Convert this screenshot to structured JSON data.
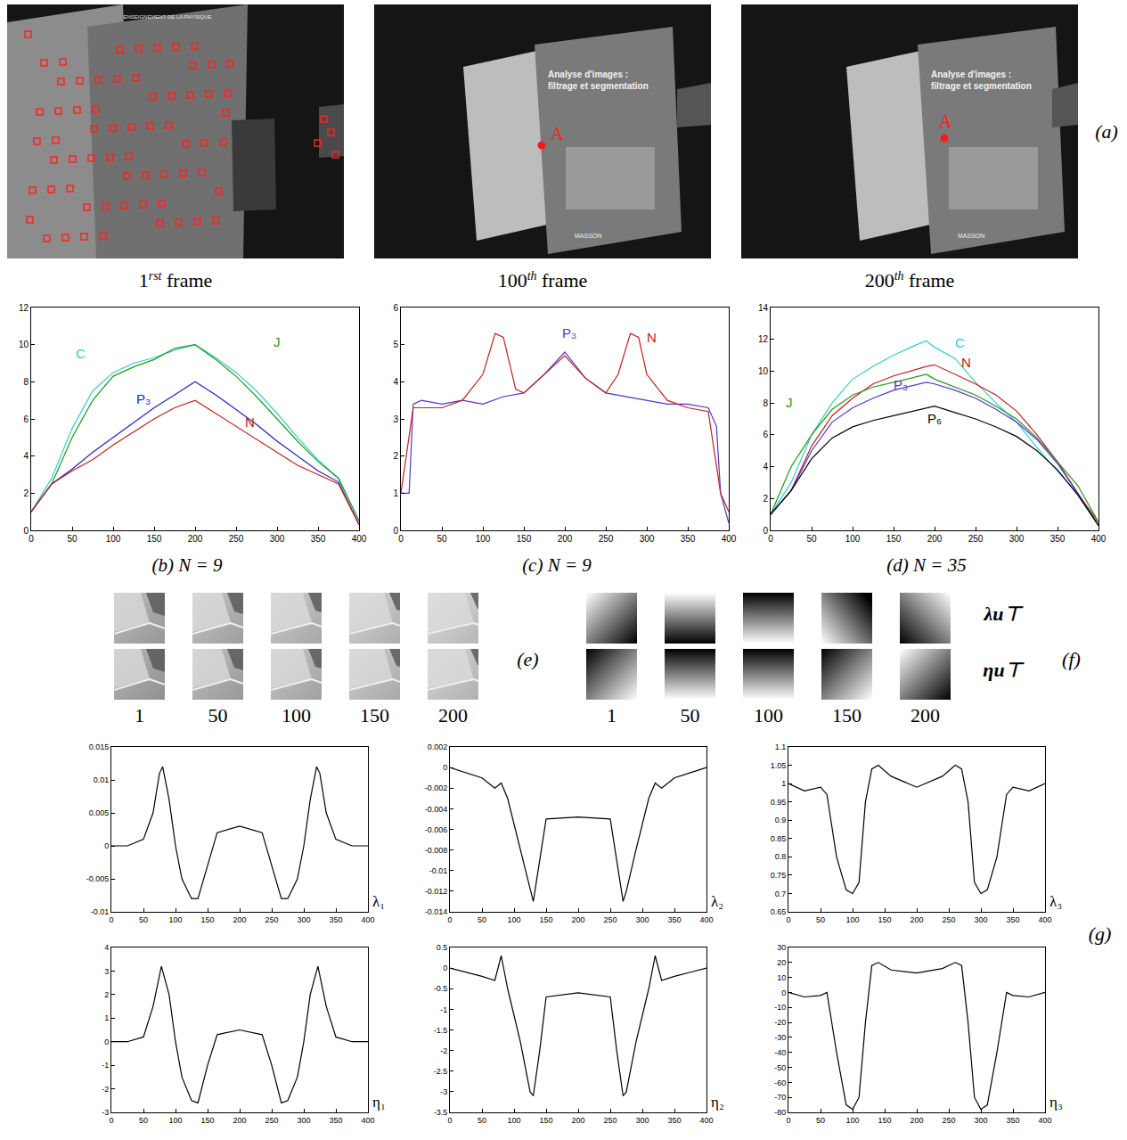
{
  "photos": {
    "panel_label": "(a)",
    "frames": [
      {
        "number": "1",
        "suffix": "rst",
        "word": "frame"
      },
      {
        "number": "100",
        "suffix": "th",
        "word": "frame"
      },
      {
        "number": "200",
        "suffix": "th",
        "word": "frame"
      }
    ],
    "point_label": "A",
    "collection": "ENSEIGNEMENT DE LA PHYSIQUE",
    "cover_title": [
      "Analyse d'images :",
      "filtrage et segmentation"
    ],
    "publisher": "MASSON"
  },
  "chart_data": [
    {
      "type": "line",
      "title": "(b) N = 9",
      "xlim": [
        0,
        400
      ],
      "xticks": [
        0,
        50,
        100,
        150,
        200,
        250,
        300,
        350,
        400
      ],
      "ylim": [
        0,
        12
      ],
      "yticks": [
        0,
        2,
        4,
        6,
        8,
        10,
        12
      ],
      "grid": false,
      "series": [
        {
          "name": "C",
          "color": "#33cccc",
          "x": [
            0,
            25,
            50,
            75,
            100,
            125,
            150,
            175,
            200,
            225,
            250,
            275,
            300,
            325,
            350,
            375,
            400
          ],
          "values": [
            1,
            2.8,
            5.5,
            7.5,
            8.5,
            9,
            9.3,
            9.7,
            10,
            9.3,
            8.5,
            7.5,
            6.3,
            5,
            3.8,
            2.8,
            0.5
          ]
        },
        {
          "name": "J",
          "color": "#1f9a1f",
          "x": [
            0,
            25,
            50,
            75,
            100,
            125,
            150,
            175,
            200,
            225,
            250,
            275,
            300,
            325,
            350,
            375,
            400
          ],
          "values": [
            1,
            2.5,
            5,
            7,
            8.3,
            8.8,
            9.2,
            9.8,
            10,
            9.2,
            8.3,
            7.2,
            6,
            4.8,
            3.7,
            2.8,
            0.5
          ]
        },
        {
          "name": "P₃",
          "color": "#2222c0",
          "x": [
            0,
            25,
            50,
            75,
            100,
            125,
            150,
            175,
            200,
            225,
            250,
            275,
            300,
            325,
            350,
            375,
            400
          ],
          "values": [
            1,
            2.5,
            3.3,
            4.2,
            5,
            5.8,
            6.6,
            7.3,
            8,
            7.3,
            6.5,
            5.7,
            4.8,
            4,
            3.2,
            2.6,
            0.3
          ]
        },
        {
          "name": "N",
          "color": "#c02020",
          "x": [
            0,
            25,
            50,
            75,
            100,
            125,
            150,
            175,
            200,
            225,
            250,
            275,
            300,
            325,
            350,
            375,
            400
          ],
          "values": [
            1,
            2.5,
            3.2,
            3.8,
            4.6,
            5.3,
            6,
            6.6,
            7,
            6.3,
            5.6,
            4.9,
            4.2,
            3.5,
            3,
            2.5,
            0.3
          ]
        }
      ]
    },
    {
      "type": "line",
      "title": "(c) N = 9",
      "xlim": [
        0,
        400
      ],
      "xticks": [
        0,
        50,
        100,
        150,
        200,
        250,
        300,
        350,
        400
      ],
      "ylim": [
        0,
        6
      ],
      "yticks": [
        0,
        1,
        2,
        3,
        4,
        5,
        6
      ],
      "grid": false,
      "series": [
        {
          "name": "P₃",
          "color": "#5533cc",
          "x": [
            0,
            10,
            15,
            25,
            50,
            75,
            100,
            125,
            150,
            175,
            200,
            225,
            250,
            275,
            300,
            325,
            350,
            375,
            385,
            390,
            400
          ],
          "values": [
            1,
            1,
            3.4,
            3.5,
            3.4,
            3.5,
            3.4,
            3.6,
            3.7,
            4.2,
            4.8,
            4.1,
            3.7,
            3.6,
            3.5,
            3.4,
            3.4,
            3.3,
            2.8,
            1,
            0.2
          ]
        },
        {
          "name": "N",
          "color": "#c02020",
          "x": [
            0,
            15,
            50,
            75,
            100,
            115,
            125,
            140,
            150,
            175,
            200,
            225,
            250,
            265,
            280,
            290,
            300,
            325,
            350,
            375,
            390,
            400
          ],
          "values": [
            1,
            3.3,
            3.3,
            3.5,
            4.2,
            5.3,
            5.2,
            3.8,
            3.7,
            4.2,
            4.7,
            4.1,
            3.7,
            4.2,
            5.3,
            5.2,
            4.2,
            3.5,
            3.3,
            3.2,
            1,
            0.5
          ]
        }
      ]
    },
    {
      "type": "line",
      "title": "(d) N = 35",
      "xlim": [
        0,
        400
      ],
      "xticks": [
        0,
        50,
        100,
        150,
        200,
        250,
        300,
        350,
        400
      ],
      "ylim": [
        0,
        14
      ],
      "yticks": [
        0,
        2,
        4,
        6,
        8,
        10,
        12,
        14
      ],
      "grid": false,
      "series": [
        {
          "name": "C",
          "color": "#33cccc",
          "x": [
            0,
            25,
            50,
            75,
            100,
            125,
            150,
            175,
            190,
            200,
            225,
            250,
            275,
            300,
            325,
            350,
            375,
            400
          ],
          "values": [
            1,
            3,
            6,
            8,
            9.5,
            10.3,
            11,
            11.6,
            11.9,
            11.5,
            10.8,
            9.3,
            8,
            6.8,
            5.2,
            3.7,
            2.3,
            0.3
          ]
        },
        {
          "name": "N",
          "color": "#c02020",
          "x": [
            0,
            25,
            50,
            75,
            100,
            125,
            150,
            175,
            190,
            200,
            225,
            250,
            275,
            300,
            325,
            350,
            375,
            400
          ],
          "values": [
            1,
            2.5,
            5.3,
            7.2,
            8.3,
            9.2,
            9.7,
            10.1,
            10.3,
            10.4,
            9.8,
            9.2,
            8.5,
            7.5,
            6,
            4.3,
            2.3,
            0.5
          ]
        },
        {
          "name": "J",
          "color": "#1f9a1f",
          "x": [
            0,
            25,
            50,
            75,
            100,
            125,
            150,
            175,
            190,
            200,
            225,
            250,
            275,
            300,
            325,
            350,
            375,
            400
          ],
          "values": [
            1,
            4,
            6,
            7.6,
            8.5,
            9,
            9.3,
            9.6,
            9.8,
            9.5,
            9,
            8.5,
            7.8,
            7,
            5.8,
            4.3,
            2.8,
            0.5
          ]
        },
        {
          "name": "P₃",
          "color": "#5533cc",
          "x": [
            0,
            25,
            50,
            75,
            100,
            125,
            150,
            175,
            190,
            200,
            225,
            250,
            275,
            300,
            325,
            350,
            375,
            400
          ],
          "values": [
            1,
            2.5,
            5,
            6.8,
            7.7,
            8.3,
            8.8,
            9.1,
            9.3,
            9.2,
            8.8,
            8.3,
            7.6,
            6.8,
            5.7,
            4.2,
            2.3,
            0.3
          ]
        },
        {
          "name": "P₆",
          "color": "#000000",
          "x": [
            0,
            25,
            50,
            75,
            100,
            125,
            150,
            175,
            190,
            200,
            225,
            250,
            275,
            300,
            325,
            350,
            375,
            400
          ],
          "values": [
            1,
            2.5,
            4.5,
            5.8,
            6.5,
            6.9,
            7.2,
            7.5,
            7.7,
            7.8,
            7.4,
            7,
            6.5,
            5.9,
            5,
            3.8,
            2.2,
            0.3
          ]
        }
      ]
    },
    {
      "type": "line",
      "ylabel": "λ₁",
      "xlim": [
        0,
        400
      ],
      "xticks": [
        0,
        50,
        100,
        150,
        200,
        250,
        300,
        350,
        400
      ],
      "ylim": [
        -0.01,
        0.015
      ],
      "yticks": [
        -0.01,
        -0.005,
        0,
        0.005,
        0.01,
        0.015
      ],
      "grid": false,
      "series": [
        {
          "color": "#000000",
          "x": [
            0,
            25,
            50,
            65,
            75,
            80,
            90,
            100,
            110,
            125,
            135,
            150,
            165,
            200,
            235,
            250,
            265,
            275,
            290,
            300,
            310,
            320,
            325,
            335,
            350,
            375,
            400
          ],
          "values": [
            0,
            0,
            0.001,
            0.005,
            0.011,
            0.012,
            0.007,
            0,
            -0.005,
            -0.008,
            -0.008,
            -0.003,
            0.002,
            0.003,
            0.002,
            -0.003,
            -0.008,
            -0.008,
            -0.005,
            0,
            0.007,
            0.012,
            0.011,
            0.005,
            0.001,
            0,
            0
          ]
        }
      ]
    },
    {
      "type": "line",
      "ylabel": "λ₂",
      "xlim": [
        0,
        400
      ],
      "xticks": [
        0,
        50,
        100,
        150,
        200,
        250,
        300,
        350,
        400
      ],
      "ylim": [
        -0.014,
        0.002
      ],
      "yticks": [
        -0.014,
        -0.012,
        -0.01,
        -0.008,
        -0.006,
        -0.004,
        -0.002,
        0,
        0.002
      ],
      "grid": false,
      "series": [
        {
          "color": "#000000",
          "x": [
            0,
            25,
            50,
            70,
            80,
            90,
            110,
            125,
            130,
            140,
            150,
            200,
            250,
            260,
            270,
            275,
            290,
            310,
            320,
            330,
            350,
            375,
            400
          ],
          "values": [
            0,
            -0.0005,
            -0.001,
            -0.002,
            -0.0015,
            -0.003,
            -0.008,
            -0.012,
            -0.013,
            -0.009,
            -0.005,
            -0.0048,
            -0.005,
            -0.009,
            -0.013,
            -0.012,
            -0.008,
            -0.003,
            -0.0015,
            -0.002,
            -0.001,
            -0.0005,
            0
          ]
        }
      ]
    },
    {
      "type": "line",
      "ylabel": "λ₃",
      "xlim": [
        0,
        400
      ],
      "xticks": [
        0,
        50,
        100,
        150,
        200,
        250,
        300,
        350,
        400
      ],
      "ylim": [
        0.65,
        1.1
      ],
      "yticks": [
        0.65,
        0.7,
        0.75,
        0.8,
        0.85,
        0.9,
        0.95,
        1,
        1.05,
        1.1
      ],
      "grid": false,
      "series": [
        {
          "color": "#000000",
          "x": [
            0,
            25,
            50,
            60,
            75,
            90,
            100,
            110,
            120,
            130,
            140,
            160,
            200,
            240,
            260,
            270,
            280,
            290,
            300,
            310,
            325,
            340,
            350,
            375,
            400
          ],
          "values": [
            1,
            0.98,
            0.99,
            0.97,
            0.8,
            0.71,
            0.7,
            0.73,
            0.95,
            1.04,
            1.05,
            1.02,
            0.99,
            1.02,
            1.05,
            1.04,
            0.95,
            0.73,
            0.7,
            0.71,
            0.8,
            0.97,
            0.99,
            0.98,
            1
          ]
        }
      ]
    },
    {
      "type": "line",
      "ylabel": "η₁",
      "xlim": [
        0,
        400
      ],
      "xticks": [
        0,
        50,
        100,
        150,
        200,
        250,
        300,
        350,
        400
      ],
      "ylim": [
        -3,
        4
      ],
      "yticks": [
        -3,
        -2,
        -1,
        0,
        1,
        2,
        3,
        4
      ],
      "grid": false,
      "series": [
        {
          "color": "#000000",
          "x": [
            0,
            25,
            50,
            65,
            78,
            90,
            100,
            110,
            125,
            135,
            150,
            165,
            200,
            235,
            250,
            265,
            275,
            290,
            300,
            310,
            322,
            335,
            350,
            375,
            400
          ],
          "values": [
            0,
            0,
            0.2,
            1.5,
            3.2,
            2,
            0,
            -1.5,
            -2.5,
            -2.6,
            -1,
            0.3,
            0.5,
            0.3,
            -1,
            -2.6,
            -2.5,
            -1.5,
            0,
            2,
            3.2,
            1.5,
            0.2,
            0,
            0
          ]
        }
      ]
    },
    {
      "type": "line",
      "ylabel": "η₂",
      "xlim": [
        0,
        400
      ],
      "xticks": [
        0,
        50,
        100,
        150,
        200,
        250,
        300,
        350,
        400
      ],
      "ylim": [
        -3.5,
        0.5
      ],
      "yticks": [
        -3.5,
        -3,
        -2.5,
        -2,
        -1.5,
        -1,
        -0.5,
        0,
        0.5
      ],
      "grid": false,
      "series": [
        {
          "color": "#000000",
          "x": [
            0,
            25,
            50,
            70,
            80,
            90,
            110,
            125,
            130,
            140,
            150,
            200,
            250,
            260,
            270,
            275,
            290,
            310,
            320,
            330,
            350,
            375,
            400
          ],
          "values": [
            0,
            -0.1,
            -0.2,
            -0.3,
            0.3,
            -0.5,
            -1.8,
            -3,
            -3.1,
            -2,
            -0.7,
            -0.6,
            -0.7,
            -2,
            -3.1,
            -3,
            -1.8,
            -0.5,
            0.3,
            -0.3,
            -0.2,
            -0.1,
            0
          ]
        }
      ]
    },
    {
      "type": "line",
      "ylabel": "η₃",
      "xlim": [
        0,
        400
      ],
      "xticks": [
        0,
        50,
        100,
        150,
        200,
        250,
        300,
        350,
        400
      ],
      "ylim": [
        -80,
        30
      ],
      "yticks": [
        -80,
        -70,
        -60,
        -50,
        -40,
        -30,
        -20,
        -10,
        0,
        10,
        20,
        30
      ],
      "grid": false,
      "series": [
        {
          "color": "#000000",
          "x": [
            0,
            25,
            50,
            60,
            75,
            90,
            100,
            110,
            120,
            130,
            140,
            160,
            200,
            240,
            260,
            270,
            280,
            290,
            300,
            310,
            325,
            340,
            350,
            375,
            400
          ],
          "values": [
            0,
            -3,
            -2,
            0,
            -40,
            -75,
            -78,
            -70,
            -20,
            18,
            20,
            15,
            13,
            16,
            20,
            18,
            -20,
            -70,
            -78,
            -75,
            -40,
            0,
            -2,
            -3,
            0
          ]
        }
      ]
    }
  ],
  "patches": {
    "panel_label": "(e)",
    "frames": [
      1,
      50,
      100,
      150,
      200
    ]
  },
  "ramps": {
    "panel_label": "(f)",
    "rows": [
      "λu⊤",
      "ηu⊤"
    ],
    "frames": [
      1,
      50,
      100,
      150,
      200
    ]
  },
  "g_panel_label": "(g)"
}
